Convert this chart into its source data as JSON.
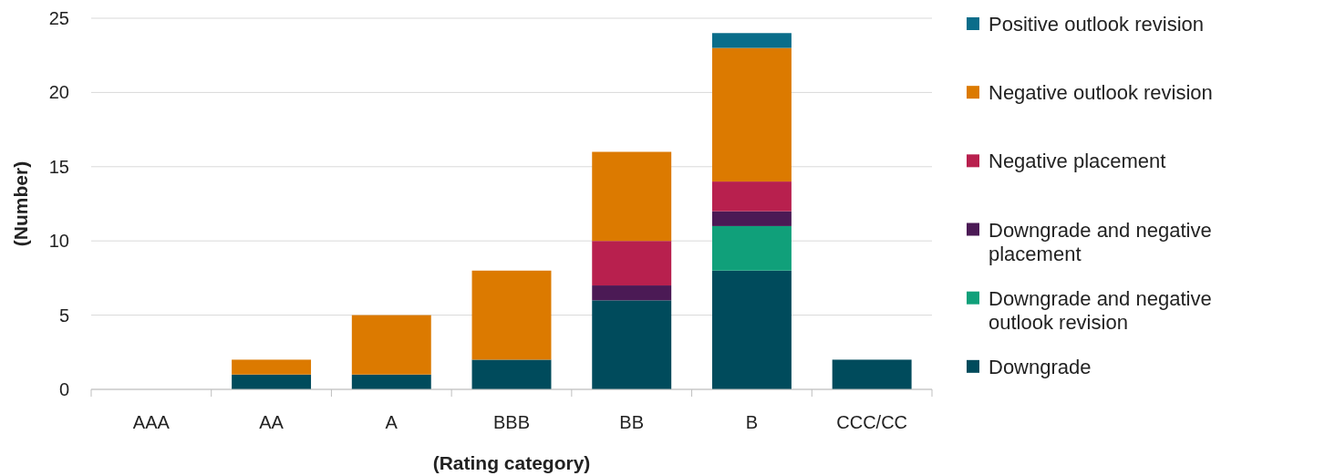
{
  "chart_data": {
    "type": "bar",
    "stacked": true,
    "xlabel": "(Rating category)",
    "ylabel": "(Number)",
    "categories": [
      "AAA",
      "AA",
      "A",
      "BBB",
      "BB",
      "B",
      "CCC/CC"
    ],
    "ylim": [
      0,
      25
    ],
    "yticks": [
      0,
      5,
      10,
      15,
      20,
      25
    ],
    "grid": "y",
    "legend": "right",
    "series": [
      {
        "name": "Downgrade",
        "color": "#004b5c",
        "values": [
          0,
          1,
          1,
          2,
          6,
          8,
          2
        ]
      },
      {
        "name": "Downgrade and negative outlook revision",
        "color": "#10a07a",
        "values": [
          0,
          0,
          0,
          0,
          0,
          3,
          0
        ]
      },
      {
        "name": "Downgrade and negative placement",
        "color": "#4b1a55",
        "values": [
          0,
          0,
          0,
          0,
          1,
          1,
          0
        ]
      },
      {
        "name": "Negative placement",
        "color": "#b8204e",
        "values": [
          0,
          0,
          0,
          0,
          3,
          2,
          0
        ]
      },
      {
        "name": "Negative outlook revision",
        "color": "#dc7a00",
        "values": [
          0,
          1,
          4,
          6,
          6,
          9,
          0
        ]
      },
      {
        "name": "Positive outlook revision",
        "color": "#0a6d8a",
        "values": [
          0,
          0,
          0,
          0,
          0,
          1,
          0
        ]
      }
    ]
  }
}
